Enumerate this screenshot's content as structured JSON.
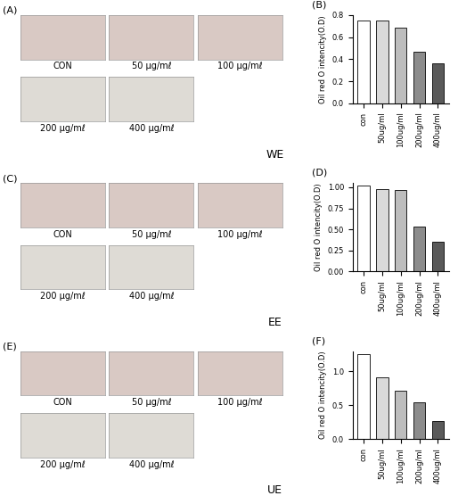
{
  "chart_data": [
    {
      "type": "bar",
      "title": "(B)",
      "y_label": "Oil red O intencity(O.D)",
      "categories": [
        "con",
        "50ug/ml",
        "100ug/ml",
        "200ug/ml",
        "400ug/ml"
      ],
      "values": [
        0.75,
        0.75,
        0.69,
        0.47,
        0.36
      ],
      "colors": [
        "#ffffff",
        "#d9d9d9",
        "#bdbdbd",
        "#8c8c8c",
        "#5a5a5a"
      ],
      "ylim": [
        0,
        0.8
      ],
      "yticks": [
        {
          "value": 0,
          "label": "0.0"
        },
        {
          "value": 0.2,
          "label": "0.2"
        },
        {
          "value": 0.4,
          "label": "0.4"
        },
        {
          "value": 0.6,
          "label": "0.6"
        },
        {
          "value": 0.8,
          "label": "0.8"
        }
      ],
      "grid": false
    },
    {
      "type": "bar",
      "title": "(D)",
      "y_label": "Oil red O intencity(O.D)",
      "categories": [
        "con",
        "50ug/ml",
        "100ug/ml",
        "200ug/ml",
        "400ug/ml"
      ],
      "values": [
        1.02,
        0.98,
        0.97,
        0.53,
        0.35
      ],
      "colors": [
        "#ffffff",
        "#d9d9d9",
        "#bdbdbd",
        "#8c8c8c",
        "#5a5a5a"
      ],
      "ylim": [
        0,
        1.05
      ],
      "yticks": [
        {
          "value": 0,
          "label": "0.00"
        },
        {
          "value": 0.25,
          "label": "0.25"
        },
        {
          "value": 0.5,
          "label": "0.50"
        },
        {
          "value": 0.75,
          "label": "0.75"
        },
        {
          "value": 1.0,
          "label": "1.00"
        }
      ],
      "grid": false
    },
    {
      "type": "bar",
      "title": "(F)",
      "y_label": "Oil red O intencity(O.D)",
      "categories": [
        "con",
        "50ug/ml",
        "100ug/ml",
        "200ug/ml",
        "400ug/ml"
      ],
      "values": [
        1.26,
        0.91,
        0.72,
        0.55,
        0.27
      ],
      "colors": [
        "#ffffff",
        "#d9d9d9",
        "#bdbdbd",
        "#8c8c8c",
        "#5a5a5a"
      ],
      "ylim": [
        0,
        1.3
      ],
      "yticks": [
        {
          "value": 0,
          "label": "0.0"
        },
        {
          "value": 0.5,
          "label": "0.5"
        },
        {
          "value": 1.0,
          "label": "1.0"
        }
      ],
      "grid": false
    }
  ],
  "image_panels": [
    {
      "label": "(A)",
      "group": "WE",
      "tiles": [
        "CON",
        "50 μg/mℓ",
        "100 μg/mℓ",
        "200 μg/mℓ",
        "400 μg/mℓ"
      ]
    },
    {
      "label": "(C)",
      "group": "EE",
      "tiles": [
        "CON",
        "50 μg/mℓ",
        "100 μg/mℓ",
        "200 μg/mℓ",
        "400 μg/mℓ"
      ]
    },
    {
      "label": "(E)",
      "group": "UE",
      "tiles": [
        "CON",
        "50 μg/mℓ",
        "100 μg/mℓ",
        "200 μg/mℓ",
        "400 μg/mℓ"
      ]
    }
  ]
}
